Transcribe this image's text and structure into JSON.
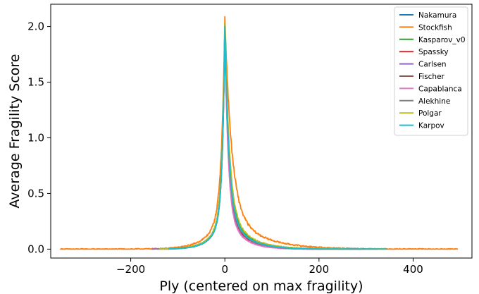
{
  "chart_data": {
    "type": "line",
    "title": "",
    "xlabel": "Ply (centered on max fragility)",
    "ylabel": "Average Fragility Score",
    "xlim": [
      -370,
      525
    ],
    "ylim": [
      -0.08,
      2.2
    ],
    "xticks": [
      -200,
      0,
      200,
      400
    ],
    "xtick_labels": [
      "−200",
      "0",
      "200",
      "400"
    ],
    "yticks": [
      0.0,
      0.5,
      1.0,
      1.5,
      2.0
    ],
    "ytick_labels": [
      "0.0",
      "0.5",
      "1.0",
      "1.5",
      "2.0"
    ],
    "grid": false,
    "legend_position": "top-right",
    "series": [
      {
        "name": "Nakamura",
        "color": "#1f77b4",
        "x_range": [
          -140,
          230
        ],
        "peak": 2.02,
        "width_left": 16,
        "width_right": 24,
        "noise": 0.01
      },
      {
        "name": "Stockfish",
        "color": "#ff7f0e",
        "x_range": [
          -350,
          495
        ],
        "peak": 2.09,
        "width_left": 20,
        "width_right": 40,
        "noise": 0.015
      },
      {
        "name": "Kasparov_v0",
        "color": "#2ca02c",
        "x_range": [
          -130,
          300
        ],
        "peak": 2.03,
        "width_left": 16,
        "width_right": 26,
        "noise": 0.01
      },
      {
        "name": "Spassky",
        "color": "#d62728",
        "x_range": [
          -130,
          300
        ],
        "peak": 2.01,
        "width_left": 15,
        "width_right": 22,
        "noise": 0.008
      },
      {
        "name": "Carlsen",
        "color": "#9467bd",
        "x_range": [
          -155,
          325
        ],
        "peak": 2.0,
        "width_left": 16,
        "width_right": 20,
        "noise": 0.008
      },
      {
        "name": "Fischer",
        "color": "#8c564b",
        "x_range": [
          -120,
          280
        ],
        "peak": 2.01,
        "width_left": 15,
        "width_right": 23,
        "noise": 0.008
      },
      {
        "name": "Capablanca",
        "color": "#e377c2",
        "x_range": [
          -130,
          290
        ],
        "peak": 2.0,
        "width_left": 15,
        "width_right": 19,
        "noise": 0.008
      },
      {
        "name": "Alekhine",
        "color": "#7f7f7f",
        "x_range": [
          -140,
          300
        ],
        "peak": 2.01,
        "width_left": 16,
        "width_right": 23,
        "noise": 0.008
      },
      {
        "name": "Polgar",
        "color": "#bcbd22",
        "x_range": [
          -140,
          340
        ],
        "peak": 2.04,
        "width_left": 16,
        "width_right": 27,
        "noise": 0.01
      },
      {
        "name": "Karpov",
        "color": "#17becf",
        "x_range": [
          -120,
          345
        ],
        "peak": 2.0,
        "width_left": 15,
        "width_right": 24,
        "noise": 0.008
      }
    ]
  }
}
